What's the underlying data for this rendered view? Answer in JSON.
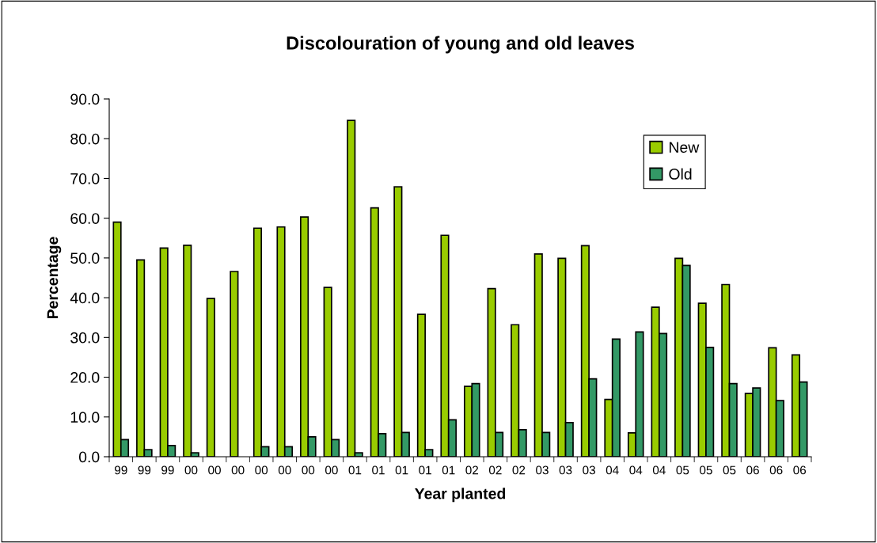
{
  "chart_data": {
    "type": "bar",
    "title": "Discolouration of young and old leaves",
    "xlabel": "Year planted",
    "ylabel": "Percentage",
    "categories": [
      "99",
      "99",
      "99",
      "00",
      "00",
      "00",
      "00",
      "00",
      "00",
      "00",
      "01",
      "01",
      "01",
      "01",
      "01",
      "02",
      "02",
      "02",
      "03",
      "03",
      "03",
      "04",
      "04",
      "04",
      "05",
      "05",
      "05",
      "06",
      "06",
      "06"
    ],
    "series": [
      {
        "name": "New",
        "color": "#99cc00",
        "values": [
          59.0,
          49.5,
          52.5,
          53.2,
          39.8,
          46.6,
          57.5,
          57.8,
          60.3,
          42.6,
          84.6,
          62.6,
          67.9,
          35.8,
          55.7,
          17.7,
          42.3,
          33.2,
          51.0,
          49.9,
          53.1,
          14.4,
          6.0,
          37.6,
          49.9,
          38.6,
          43.3,
          15.9,
          27.4,
          25.6
        ]
      },
      {
        "name": "Old",
        "color": "#339966",
        "values": [
          4.3,
          1.8,
          2.8,
          1.0,
          null,
          null,
          2.5,
          2.5,
          5.0,
          4.3,
          1.0,
          5.8,
          6.1,
          1.8,
          9.3,
          18.4,
          6.1,
          6.8,
          6.1,
          8.6,
          19.6,
          29.6,
          31.4,
          31.0,
          48.1,
          27.5,
          18.4,
          17.3,
          14.1,
          18.8
        ]
      }
    ],
    "ylim": [
      0,
      90
    ],
    "yticks": [
      {
        "value": 0,
        "label": "0.0"
      },
      {
        "value": 10,
        "label": "10.0"
      },
      {
        "value": 20,
        "label": "20.0"
      },
      {
        "value": 30,
        "label": "30.0"
      },
      {
        "value": 40,
        "label": "40.0"
      },
      {
        "value": 50,
        "label": "50.0"
      },
      {
        "value": 60,
        "label": "60.0"
      },
      {
        "value": 70,
        "label": "70.0"
      },
      {
        "value": 80,
        "label": "80.0"
      },
      {
        "value": 90,
        "label": "90.0"
      }
    ],
    "grid": false,
    "legend": "top right"
  }
}
